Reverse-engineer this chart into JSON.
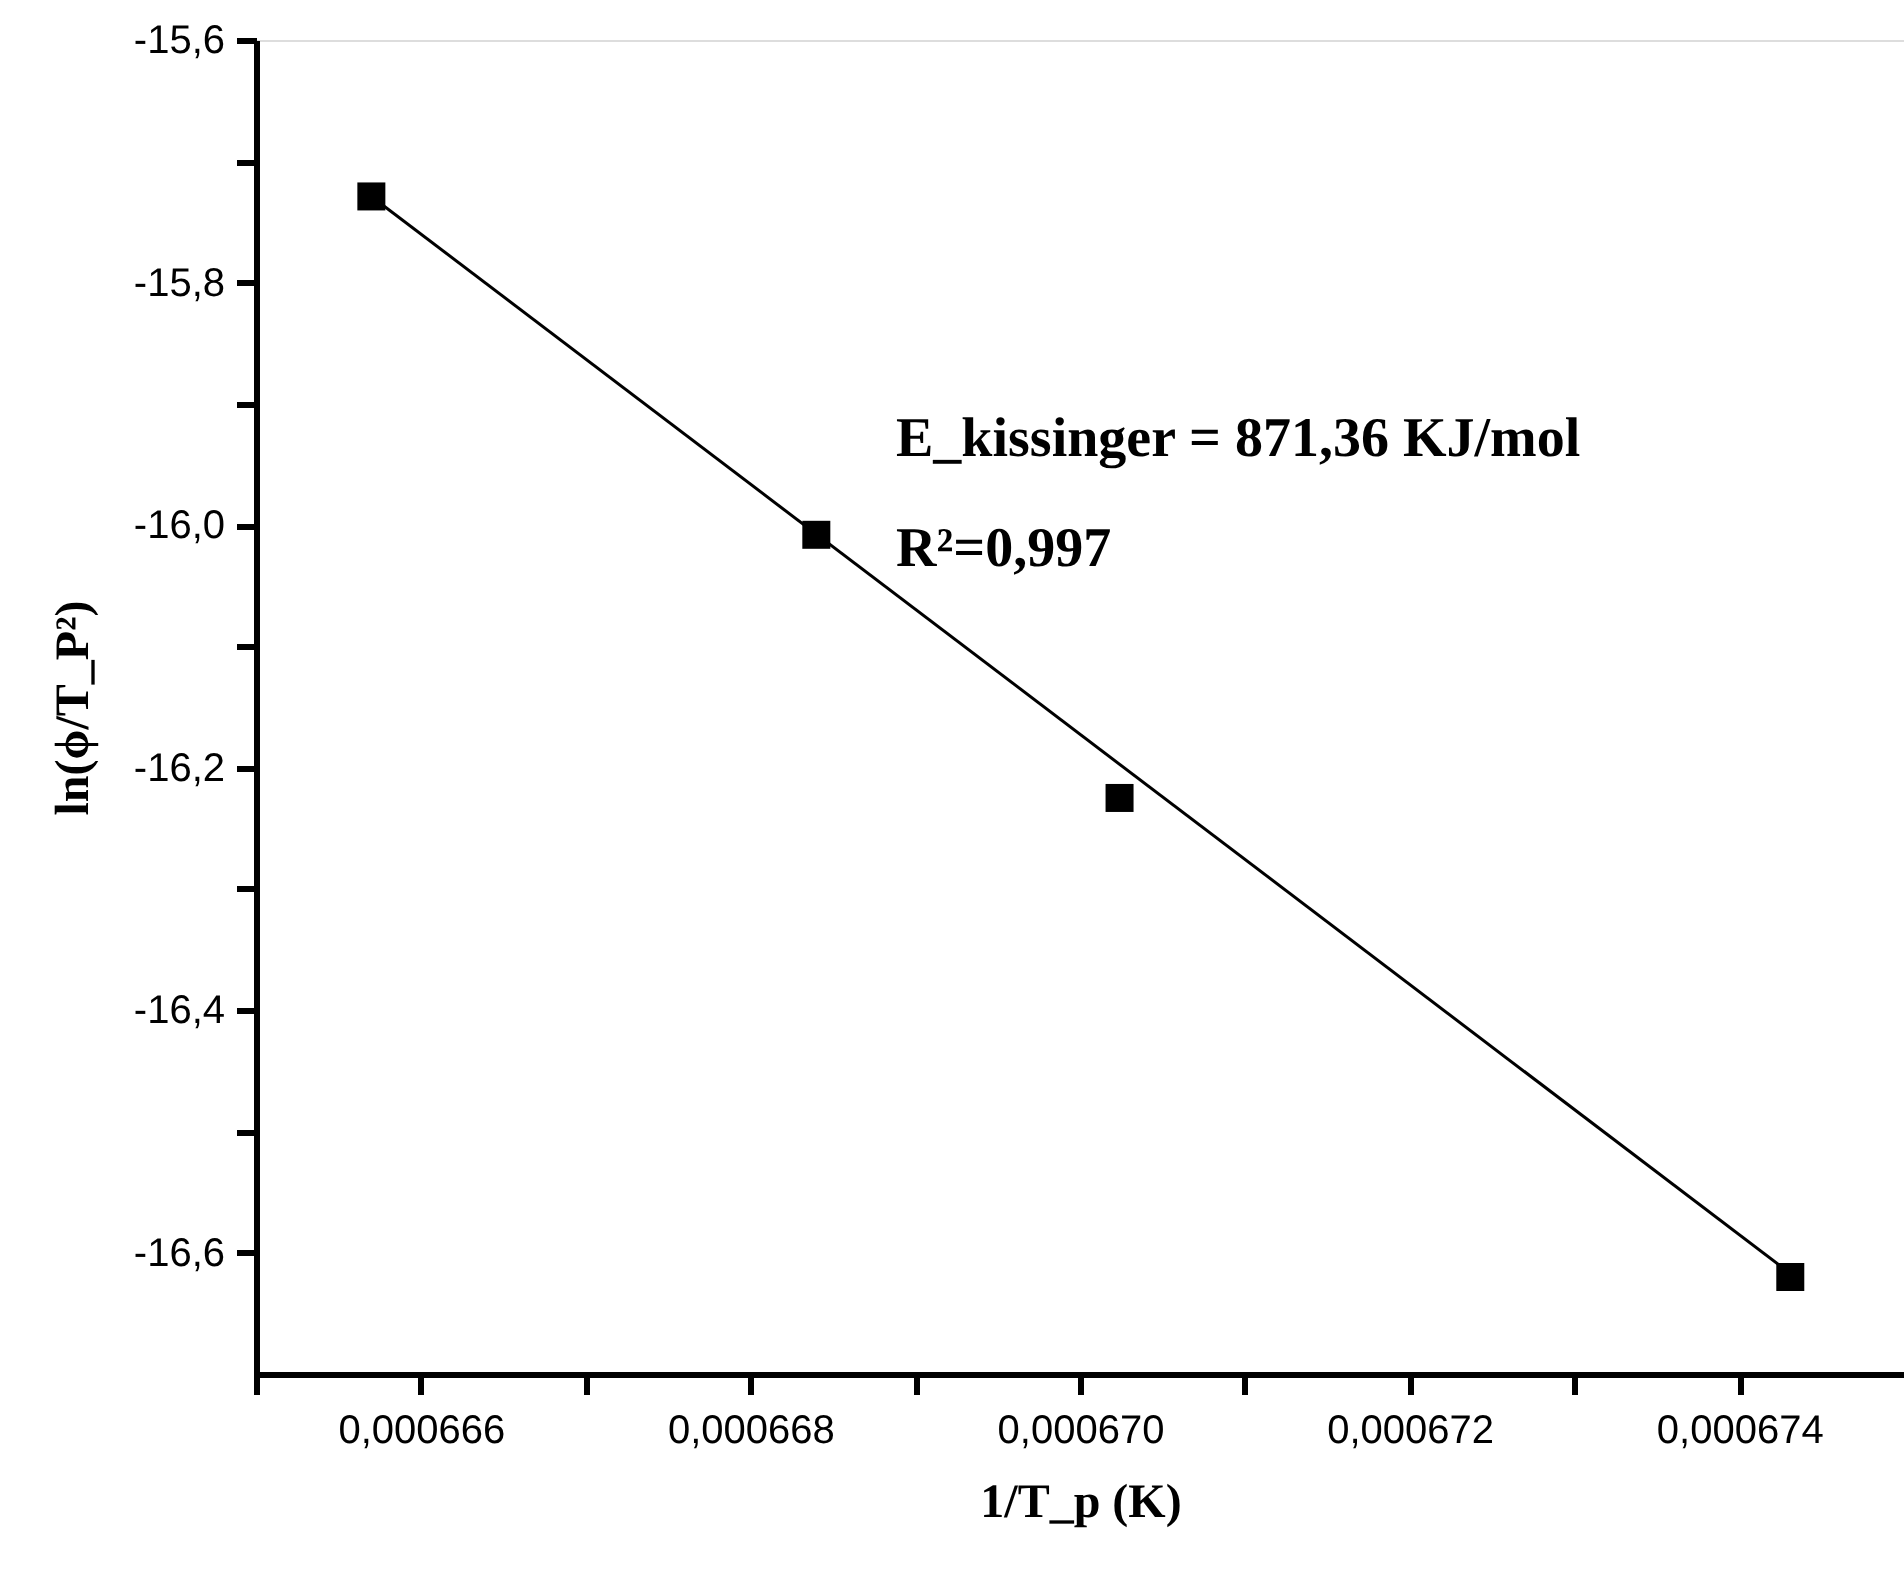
{
  "chart_data": {
    "type": "scatter",
    "xlabel": "1/T_p (K)",
    "ylabel": "ln(ϕ/T_P²)",
    "xlim": [
      0.000665,
      0.000675
    ],
    "xticks": [
      {
        "value": 0.000665,
        "label": null
      },
      {
        "value": 0.000666,
        "label": "0,000666"
      },
      {
        "value": 0.000667,
        "label": null
      },
      {
        "value": 0.000668,
        "label": "0,000668"
      },
      {
        "value": 0.000669,
        "label": null
      },
      {
        "value": 0.00067,
        "label": "0,000670"
      },
      {
        "value": 0.000671,
        "label": null
      },
      {
        "value": 0.000672,
        "label": "0,000672"
      },
      {
        "value": 0.000673,
        "label": null
      },
      {
        "value": 0.000674,
        "label": "0,000674"
      }
    ],
    "ylim": [
      -16.7,
      -15.6
    ],
    "yticks": [
      {
        "value": -15.6,
        "label": "-15,6"
      },
      {
        "value": -15.7,
        "label": null
      },
      {
        "value": -15.8,
        "label": "-15,8"
      },
      {
        "value": -15.9,
        "label": null
      },
      {
        "value": -16.0,
        "label": "-16,0"
      },
      {
        "value": -16.1,
        "label": null
      },
      {
        "value": -16.2,
        "label": "-16,2"
      },
      {
        "value": -16.3,
        "label": null
      },
      {
        "value": -16.4,
        "label": "-16,4"
      },
      {
        "value": -16.5,
        "label": null
      },
      {
        "value": -16.6,
        "label": "-16,6"
      }
    ],
    "series": [
      {
        "color": "#000000",
        "marker": "square",
        "x": [
          0.0006657,
          0.0006684,
          0.00067024,
          0.00067431
        ],
        "values": [
          -15.729,
          -16.008,
          -16.225,
          -16.62
        ]
      },
      {
        "type": "line",
        "color": "#000000",
        "marker": "none",
        "line_style": "solid",
        "x": [
          0.0006657,
          0.00067431
        ],
        "values": [
          -15.729,
          -16.617
        ]
      }
    ],
    "annotations": [
      "E_kissinger = 871,36 KJ/mol",
      "R²=0,997"
    ],
    "grid": false
  }
}
